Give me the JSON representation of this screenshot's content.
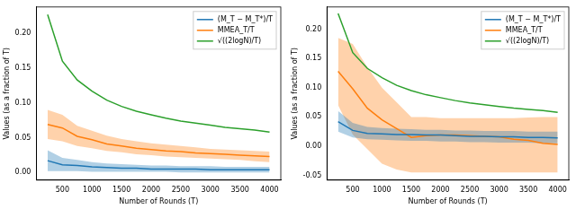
{
  "chart_data": [
    {
      "type": "line",
      "x_label": "Number of Rounds (T)",
      "y_label": "Values (as a fraction of T)",
      "x": [
        250,
        500,
        750,
        1000,
        1250,
        1500,
        1750,
        2000,
        2250,
        2500,
        2750,
        3000,
        3250,
        3500,
        3750,
        4000
      ],
      "xlim": [
        60,
        4190
      ],
      "xticks": [
        500,
        1000,
        1500,
        2000,
        2500,
        3000,
        3500,
        4000
      ],
      "ylim": [
        -0.011,
        0.238
      ],
      "yticks": [
        {
          "value": 0,
          "label": "0.00"
        },
        {
          "value": 0.05,
          "label": "0.05"
        },
        {
          "value": 0.1,
          "label": "0.10"
        },
        {
          "value": 0.15,
          "label": "0.15"
        },
        {
          "value": 0.2,
          "label": "0.20"
        }
      ],
      "legend": "upper right",
      "series": [
        {
          "name": "(M_T − M_T*)/T",
          "color": "#1f77b4",
          "values": [
            0.017,
            0.011,
            0.01,
            0.008,
            0.007,
            0.006,
            0.006,
            0.005,
            0.005,
            0.005,
            0.005,
            0.004,
            0.004,
            0.004,
            0.004,
            0.004
          ],
          "lower": [
            0.002,
            0.002,
            0.002,
            0.001,
            0.001,
            0.001,
            0.001,
            0.001,
            0.001,
            0.0,
            0.0,
            0.0,
            0.0,
            0.0,
            0.0,
            0.0
          ],
          "upper": [
            0.032,
            0.021,
            0.018,
            0.015,
            0.013,
            0.012,
            0.011,
            0.01,
            0.01,
            0.009,
            0.009,
            0.009,
            0.008,
            0.008,
            0.008,
            0.008
          ]
        },
        {
          "name": "MMEA_T/T",
          "color": "#ff7f0e",
          "values": [
            0.069,
            0.064,
            0.052,
            0.047,
            0.041,
            0.038,
            0.035,
            0.033,
            0.031,
            0.03,
            0.028,
            0.027,
            0.026,
            0.025,
            0.024,
            0.023
          ],
          "lower": [
            0.048,
            0.045,
            0.038,
            0.035,
            0.031,
            0.029,
            0.026,
            0.025,
            0.023,
            0.022,
            0.021,
            0.02,
            0.019,
            0.018,
            0.016,
            0.015
          ],
          "upper": [
            0.09,
            0.083,
            0.067,
            0.06,
            0.053,
            0.048,
            0.045,
            0.042,
            0.04,
            0.038,
            0.036,
            0.034,
            0.033,
            0.032,
            0.031,
            0.03
          ]
        },
        {
          "name": "√((2logN)/T)",
          "color": "#2ca02c",
          "values": [
            0.227,
            0.16,
            0.133,
            0.117,
            0.104,
            0.095,
            0.088,
            0.083,
            0.078,
            0.074,
            0.071,
            0.068,
            0.065,
            0.063,
            0.061,
            0.058
          ]
        }
      ]
    },
    {
      "type": "line",
      "x_label": "Number of Rounds (T)",
      "y_label": "Values (as a fraction of T)",
      "x": [
        250,
        500,
        750,
        1000,
        1250,
        1500,
        1750,
        2000,
        2250,
        2500,
        2750,
        3000,
        3250,
        3500,
        3750,
        4000
      ],
      "xlim": [
        60,
        4190
      ],
      "xticks": [
        500,
        1000,
        1500,
        2000,
        2500,
        3000,
        3500,
        4000
      ],
      "ylim": [
        -0.058,
        0.238
      ],
      "yticks": [
        {
          "value": -0.05,
          "label": "-0.05"
        },
        {
          "value": 0,
          "label": "0.00"
        },
        {
          "value": 0.05,
          "label": "0.05"
        },
        {
          "value": 0.1,
          "label": "0.10"
        },
        {
          "value": 0.15,
          "label": "0.15"
        },
        {
          "value": 0.2,
          "label": "0.20"
        }
      ],
      "legend": "upper right",
      "series": [
        {
          "name": "(M_T − M_T*)/T",
          "color": "#1f77b4",
          "values": [
            0.042,
            0.027,
            0.022,
            0.021,
            0.02,
            0.02,
            0.019,
            0.019,
            0.018,
            0.017,
            0.017,
            0.016,
            0.016,
            0.015,
            0.015,
            0.014
          ],
          "lower": [
            0.025,
            0.015,
            0.012,
            0.011,
            0.01,
            0.009,
            0.009,
            0.008,
            0.008,
            0.007,
            0.007,
            0.006,
            0.006,
            0.006,
            0.005,
            0.005
          ],
          "upper": [
            0.06,
            0.04,
            0.033,
            0.031,
            0.03,
            0.029,
            0.028,
            0.028,
            0.027,
            0.027,
            0.026,
            0.026,
            0.026,
            0.025,
            0.025,
            0.025
          ]
        },
        {
          "name": "MMEA_T/T",
          "color": "#ff7f0e",
          "values": [
            0.128,
            0.098,
            0.065,
            0.045,
            0.03,
            0.015,
            0.018,
            0.019,
            0.019,
            0.018,
            0.017,
            0.016,
            0.012,
            0.01,
            0.005,
            0.003
          ],
          "lower": [
            0.07,
            0.02,
            -0.005,
            -0.03,
            -0.04,
            -0.045,
            -0.045,
            -0.045,
            -0.045,
            -0.045,
            -0.045,
            -0.045,
            -0.045,
            -0.045,
            -0.045,
            -0.045
          ],
          "upper": [
            0.185,
            0.175,
            0.135,
            0.1,
            0.075,
            0.05,
            0.05,
            0.048,
            0.048,
            0.048,
            0.048,
            0.048,
            0.048,
            0.049,
            0.05,
            0.05
          ]
        },
        {
          "name": "√((2logN)/T)",
          "color": "#2ca02c",
          "values": [
            0.227,
            0.16,
            0.133,
            0.117,
            0.104,
            0.095,
            0.088,
            0.083,
            0.078,
            0.074,
            0.071,
            0.068,
            0.065,
            0.063,
            0.061,
            0.058
          ]
        }
      ]
    }
  ]
}
